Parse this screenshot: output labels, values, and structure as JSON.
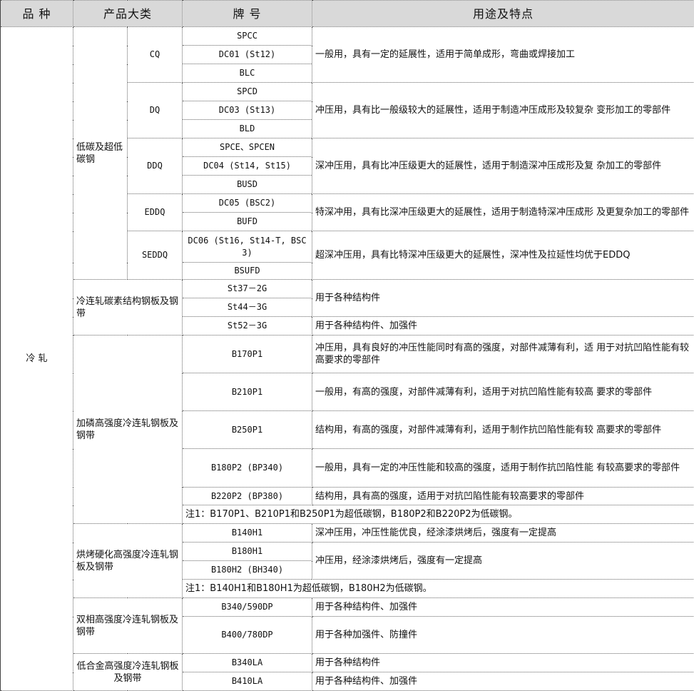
{
  "header": {
    "variety": "品 种",
    "category": "产品大类",
    "grade": "牌 号",
    "usage": "用途及特点"
  },
  "variety": "冷 轧",
  "groups": {
    "low_carbon": "低碳及超低碳钢",
    "carbon_structural": "冷连轧碳素结构钢板及钢带",
    "phosphorus": "加磷高强度冷连轧钢板及钢带",
    "bake_hardening": "烘烤硬化高强度冷连轧钢板及钢带",
    "dual_phase": "双相高强度冷连轧钢板及钢带",
    "hsla": "低合金高强度冷连轧钢板及钢带"
  },
  "subcats": {
    "cq": "CQ",
    "dq": "DQ",
    "ddq": "DDQ",
    "eddq": "EDDQ",
    "seddq": "SEDDQ"
  },
  "grades": [
    "SPCC",
    "DC01 (St12)",
    "BLC",
    "SPCD",
    "DC03 (St13)",
    "BLD",
    "SPCE、SPCEN",
    "DC04 (St14, St15)",
    "BUSD",
    "DC05 (BSC2)",
    "BUFD",
    "DC06 (St16, St14-T, BSC 3)",
    "BSUFD",
    "St37－2G",
    "St44－3G",
    "St52－3G",
    "B170P1",
    "B210P1",
    "B250P1",
    "B180P2 (BP340)",
    "B220P2 (BP380)",
    "B140H1",
    "B180H1",
    "B180H2 (BH340)",
    "B340/590DP",
    "B400/780DP",
    "B340LA",
    "B410LA"
  ],
  "usage": {
    "cq": "一般用，具有一定的延展性，适用于简单成形，弯曲或焊接加工",
    "dq": "冲压用，具有比一般级较大的延展性，适用于制造冲压成形及较复杂 变形加工的零部件",
    "ddq": "深冲压用，具有比冲压级更大的延展性，适用于制造深冲压成形及复 杂加工的零部件",
    "eddq": "特深冲用，具有比深冲压级更大的延展性，适用于制造特深冲压成形 及更复杂加工的零部件",
    "seddq": "超深冲压用，具有比特深冲压级更大的延展性，深冲性及拉延性均优于EDDQ",
    "st37_st44": "用于各种结构件",
    "st52": "用于各种结构件、加强件",
    "b170p1": "冲压用，具有良好的冲压性能同时有高的强度，对部件减薄有利，适 用于对抗凹陷性能有较高要求的零部件",
    "b210p1": "一般用，有高的强度，对部件减薄有利，适用于对抗凹陷性能有较高 要求的零部件",
    "b250p1": "结构用，有高的强度，对部件减薄有利，适用于制作抗凹陷性能有较 高要求的零部件",
    "b180p2": "一般用，具有一定的冲压性能和较高的强度，适用于制作抗凹陷性能 有较高要求的零部件",
    "b220p2": "结构用，具有高的强度，适用于对抗凹陷性能有较高要求的零部件",
    "b140h1": "深冲压用，冲压性能优良，经涂漆烘烤后，强度有一定提高",
    "b180h": "冲压用，经涂漆烘烤后，强度有一定提高",
    "b340dp": "用于各种结构件、加强件",
    "b400dp": "用于各种加强件、防撞件",
    "b340la": "用于各种结构件",
    "b410la": "用于各种结构件、加强件"
  },
  "notes": {
    "phosphorus": "注1：B170P1、B210P1和B250P1为超低碳钢，B180P2和B220P2为低碳钢。",
    "bake_hardening": "注1：B140H1和B180H1为超低碳钢，B180H2为低碳钢。"
  }
}
